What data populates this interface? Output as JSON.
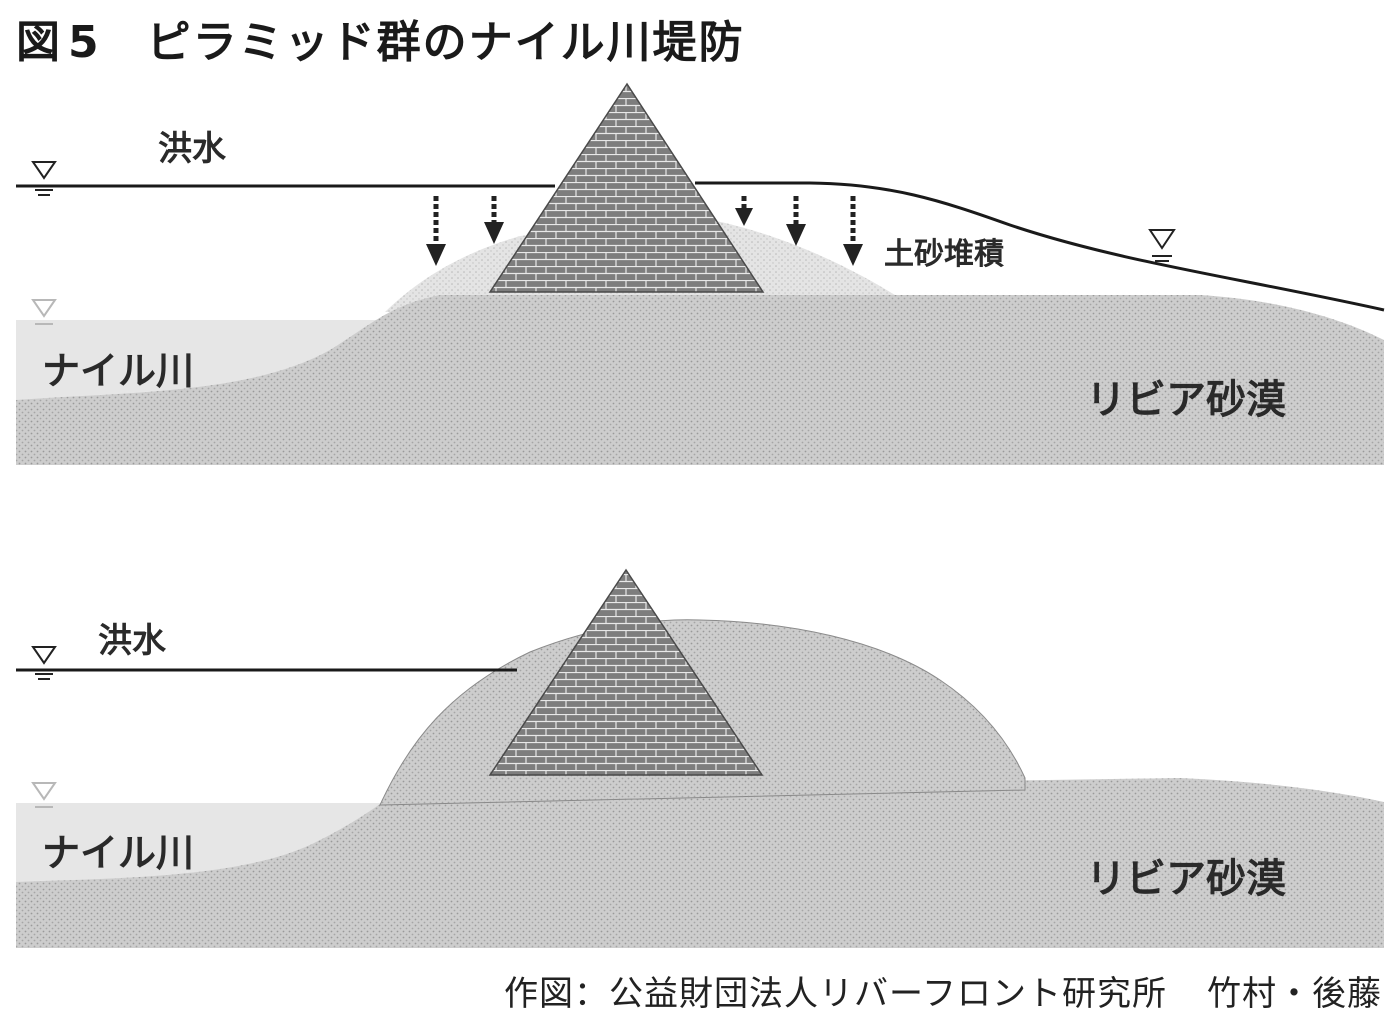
{
  "figure": {
    "label": "図",
    "number": "5",
    "title": "ピラミッド群のナイル川堤防"
  },
  "top_panel": {
    "flood_label": "洪水",
    "sediment_label": "土砂堆積",
    "river_label": "ナイル川",
    "desert_label": "リビア砂漠"
  },
  "bottom_panel": {
    "flood_label": "洪水",
    "river_label": "ナイル川",
    "desert_label": "リビア砂漠"
  },
  "credit": {
    "text": "作図：公益財団法人リバーフロント研究所",
    "authors": "竹村・後藤"
  },
  "colors": {
    "ground": "#c9c9c9",
    "sediment": "#e2e2e2",
    "river": "#e6e6e6",
    "pyramid": "#7f7f7f",
    "lines": "#1a1a1a",
    "water_marker_light": "#bdbdbd"
  }
}
